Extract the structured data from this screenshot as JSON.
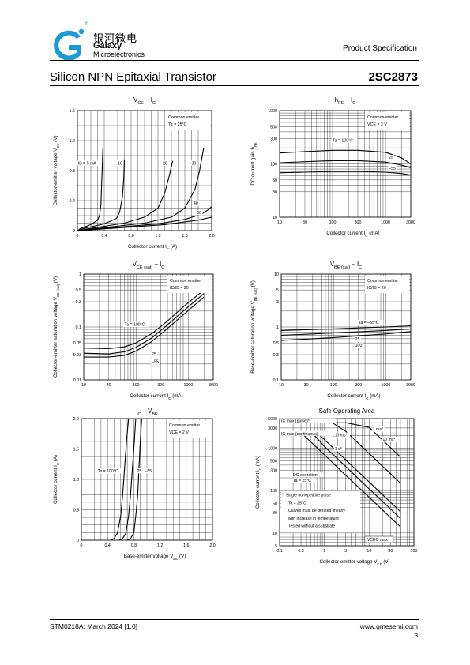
{
  "header": {
    "company_cn": "银河微电",
    "company_name": "Galaxy",
    "company_sub": "Microelectronics",
    "registered_mark": "®",
    "doc_type": "Product Specification",
    "brand_color": "#1a9ad6"
  },
  "title": "Silicon NPN Epitaxial Transistor",
  "part_number": "2SC2873",
  "footer": {
    "doc_id": "STM0218A: March 2024 [1.0]",
    "website": "www.gmesemi.com",
    "page": "3"
  },
  "chart_data": [
    {
      "id": "vce-ic",
      "type": "line",
      "title": [
        "V",
        "CE",
        " – I",
        "C"
      ],
      "xlabel": [
        "Collector current   I",
        "C",
        "   (A)"
      ],
      "ylabel": [
        "Collector-emitter voltage   V",
        "CE",
        "   (V)"
      ],
      "xscale": "linear",
      "yscale": "linear",
      "xlim": [
        0,
        2.0
      ],
      "ylim": [
        0,
        1.6
      ],
      "xticks": [
        0,
        0.4,
        0.8,
        1.2,
        1.6,
        2.0
      ],
      "xtick_labels": [
        "0",
        "0.4",
        "0.8",
        "1.2",
        "1.6",
        "2.0"
      ],
      "yticks": [
        0,
        0.4,
        0.8,
        1.2,
        1.6
      ],
      "ytick_labels": [
        "0",
        "0.4",
        "0.8",
        "1.2",
        "1.6"
      ],
      "grid": true,
      "note": [
        "Common emitter",
        "Ta = 25°C"
      ],
      "series": [
        {
          "name": "IB = 5 mA",
          "x": [
            0,
            0.05,
            0.2,
            0.3,
            0.33,
            0.35,
            0.36,
            0.37,
            0.38
          ],
          "y": [
            0,
            0.03,
            0.08,
            0.14,
            0.2,
            0.35,
            0.6,
            0.85,
            1.1
          ]
        },
        {
          "name": "10",
          "x": [
            0,
            0.1,
            0.4,
            0.58,
            0.63,
            0.67,
            0.69,
            0.7
          ],
          "y": [
            0,
            0.03,
            0.09,
            0.16,
            0.25,
            0.45,
            0.7,
            0.95
          ]
        },
        {
          "name": "20",
          "x": [
            0,
            0.2,
            0.7,
            1.0,
            1.2,
            1.3,
            1.36,
            1.42
          ],
          "y": [
            0,
            0.03,
            0.1,
            0.18,
            0.3,
            0.5,
            0.7,
            0.93
          ]
        },
        {
          "name": "30",
          "x": [
            0,
            0.3,
            1.0,
            1.4,
            1.6,
            1.75,
            1.82,
            1.88
          ],
          "y": [
            0,
            0.03,
            0.1,
            0.18,
            0.3,
            0.55,
            0.8,
            1.1
          ]
        },
        {
          "name": "40",
          "x": [
            0,
            0.4,
            1.2,
            1.6,
            1.85,
            1.95,
            2.0
          ],
          "y": [
            0,
            0.03,
            0.09,
            0.15,
            0.22,
            0.28,
            0.32
          ]
        },
        {
          "name": "50",
          "x": [
            0,
            0.5,
            1.3,
            1.8,
            2.0
          ],
          "y": [
            0,
            0.03,
            0.08,
            0.14,
            0.18
          ]
        }
      ],
      "series_labels": [
        {
          "text": "IB = 5 mA",
          "x": 0.01,
          "y": 0.88
        },
        {
          "text": "10",
          "x": 0.6,
          "y": 0.88
        },
        {
          "text": "20",
          "x": 1.27,
          "y": 0.88
        },
        {
          "text": "30",
          "x": 1.7,
          "y": 0.88
        },
        {
          "text": "40",
          "x": 1.73,
          "y": 0.35
        },
        {
          "text": "50",
          "x": 1.78,
          "y": 0.22
        }
      ]
    },
    {
      "id": "hfe-ic",
      "type": "line",
      "title": [
        "h",
        "FE",
        " – I",
        "C"
      ],
      "xlabel": [
        "Collector current   I",
        "C",
        "   (mA)"
      ],
      "ylabel": [
        "DC current gain   h",
        "FE",
        ""
      ],
      "xscale": "log",
      "yscale": "log",
      "xlim": [
        10,
        3000
      ],
      "ylim": [
        10,
        1000
      ],
      "xticks": [
        10,
        30,
        100,
        300,
        1000,
        3000
      ],
      "xtick_labels": [
        "10",
        "30",
        "100",
        "300",
        "1000",
        "3000"
      ],
      "yticks": [
        10,
        30,
        50,
        100,
        300,
        500,
        1000
      ],
      "ytick_labels": [
        "10",
        "30",
        "50",
        "100",
        "300",
        "500",
        "1000"
      ],
      "grid": true,
      "note": [
        "Common emitter",
        "VCE = 2 V"
      ],
      "series": [
        {
          "name": "Ta = 100°C",
          "x": [
            10,
            30,
            100,
            300,
            1000,
            2000,
            3000
          ],
          "y": [
            160,
            170,
            180,
            180,
            165,
            130,
            100
          ]
        },
        {
          "name": "25",
          "x": [
            10,
            30,
            100,
            300,
            1000,
            2000,
            3000
          ],
          "y": [
            105,
            110,
            115,
            115,
            108,
            95,
            85
          ]
        },
        {
          "name": "–55",
          "x": [
            10,
            30,
            100,
            300,
            1000,
            2000,
            3000
          ],
          "y": [
            68,
            70,
            72,
            72,
            70,
            66,
            62
          ]
        }
      ],
      "series_labels": [
        {
          "text": "Ta = 100°C",
          "x": 100,
          "y": 260
        },
        {
          "text": "25",
          "x": 1150,
          "y": 125
        },
        {
          "text": "–55",
          "x": 1150,
          "y": 78
        }
      ]
    },
    {
      "id": "vcesat-ic",
      "type": "line",
      "title": [
        "V",
        "CE (sat)",
        " – I",
        "C"
      ],
      "xlabel": [
        "Collector current   I",
        "C",
        "   (mA)"
      ],
      "ylabel": [
        "Collector-emitter saturation voltage   V",
        "CE (sat)",
        "   (V)"
      ],
      "xscale": "log",
      "yscale": "log",
      "xlim": [
        10,
        3000
      ],
      "ylim": [
        0.01,
        1
      ],
      "xticks": [
        10,
        30,
        100,
        300,
        1000,
        3000
      ],
      "xtick_labels": [
        "10",
        "30",
        "100",
        "300",
        "1000",
        "3000"
      ],
      "yticks": [
        0.01,
        0.03,
        0.05,
        0.1,
        0.3,
        0.5,
        1
      ],
      "ytick_labels": [
        "0.01",
        "0.03",
        "0.05",
        "0.1",
        "0.3",
        "0.5",
        "1"
      ],
      "grid": true,
      "note": [
        "Common emitter",
        "IC/IB = 20"
      ],
      "series": [
        {
          "name": "Ta = 100°C",
          "x": [
            10,
            30,
            60,
            100,
            200,
            400,
            800,
            1500,
            2000
          ],
          "y": [
            0.04,
            0.039,
            0.042,
            0.05,
            0.075,
            0.13,
            0.24,
            0.4,
            0.5
          ]
        },
        {
          "name": "25",
          "x": [
            10,
            30,
            60,
            100,
            200,
            400,
            800,
            1500,
            2000
          ],
          "y": [
            0.032,
            0.031,
            0.034,
            0.041,
            0.062,
            0.11,
            0.2,
            0.34,
            0.43
          ]
        },
        {
          "name": "–55",
          "x": [
            10,
            30,
            60,
            100,
            200,
            400,
            800,
            1500,
            2000
          ],
          "y": [
            0.027,
            0.027,
            0.029,
            0.035,
            0.053,
            0.094,
            0.17,
            0.29,
            0.37
          ]
        }
      ],
      "series_labels": [
        {
          "text": "Ta = 100°C",
          "x": 60,
          "y": 0.105
        },
        {
          "text": "25",
          "x": 200,
          "y": 0.029
        },
        {
          "text": "–55",
          "x": 200,
          "y": 0.021
        }
      ]
    },
    {
      "id": "vbesat-ic",
      "type": "line",
      "title": [
        "V",
        "BE (sat)",
        " – I",
        "C"
      ],
      "xlabel": [
        "Collector current   I",
        "C",
        "   (mA)"
      ],
      "ylabel": [
        "Base-emitter saturation voltage   V",
        "BE (sat)",
        "   (V)"
      ],
      "xscale": "log",
      "yscale": "log",
      "xlim": [
        10,
        3000
      ],
      "ylim": [
        0.1,
        10
      ],
      "xticks": [
        10,
        30,
        100,
        300,
        1000,
        3000
      ],
      "xtick_labels": [
        "10",
        "30",
        "100",
        "300",
        "1000",
        "3000"
      ],
      "yticks": [
        0.1,
        0.3,
        0.5,
        1,
        3,
        5,
        10
      ],
      "ytick_labels": [
        "0.1",
        "0.3",
        "0.5",
        "1",
        "3",
        "5",
        "10"
      ],
      "grid": true,
      "note": [
        "Common emitter",
        "IC/IB = 20"
      ],
      "series": [
        {
          "name": "Ta = –55°C",
          "x": [
            10,
            30,
            100,
            300,
            1000,
            3000
          ],
          "y": [
            0.86,
            0.89,
            0.92,
            0.96,
            1.0,
            1.05
          ]
        },
        {
          "name": "25",
          "x": [
            10,
            30,
            100,
            300,
            1000,
            3000
          ],
          "y": [
            0.7,
            0.73,
            0.77,
            0.81,
            0.86,
            0.92
          ]
        },
        {
          "name": "100",
          "x": [
            10,
            30,
            100,
            300,
            1000,
            3000
          ],
          "y": [
            0.56,
            0.59,
            0.63,
            0.68,
            0.74,
            0.82
          ]
        }
      ],
      "series_labels": [
        {
          "text": "Ta = –55°C",
          "x": 300,
          "y": 1.15
        },
        {
          "text": "25",
          "x": 260,
          "y": 0.56
        },
        {
          "text": "100",
          "x": 260,
          "y": 0.42
        }
      ]
    },
    {
      "id": "ic-vbe",
      "type": "line",
      "title": [
        "I",
        "C",
        " – V",
        "BE"
      ],
      "xlabel": [
        "Base-emitter voltage   V",
        "BE",
        "   (V)"
      ],
      "ylabel": [
        "Collector current   I",
        "C",
        "   (A)"
      ],
      "xscale": "linear",
      "yscale": "linear",
      "xlim": [
        0,
        2.0
      ],
      "ylim": [
        0,
        2.0
      ],
      "xticks": [
        0,
        0.4,
        0.8,
        1.2,
        1.6,
        2.0
      ],
      "xtick_labels": [
        "0",
        "0.4",
        "0.8",
        "1.2",
        "1.6",
        "2.0"
      ],
      "yticks": [
        0,
        0.5,
        1.0,
        1.5,
        2.0
      ],
      "ytick_labels": [
        "0",
        "0.5",
        "1.0",
        "1.5",
        "2.0"
      ],
      "grid": true,
      "note": [
        "Common emitter",
        "VCE = 2 V"
      ],
      "series": [
        {
          "name": "Ta = 100°C",
          "x": [
            0.45,
            0.5,
            0.55,
            0.6,
            0.63,
            0.66,
            0.69,
            0.72
          ],
          "y": [
            0,
            0.03,
            0.12,
            0.4,
            0.75,
            1.2,
            1.65,
            2.0
          ]
        },
        {
          "name": "25",
          "x": [
            0.58,
            0.63,
            0.68,
            0.72,
            0.75,
            0.78,
            0.81,
            0.83
          ],
          "y": [
            0,
            0.03,
            0.12,
            0.4,
            0.75,
            1.2,
            1.65,
            2.0
          ]
        },
        {
          "name": "–55",
          "x": [
            0.7,
            0.75,
            0.8,
            0.83,
            0.86,
            0.88,
            0.9,
            0.92
          ],
          "y": [
            0,
            0.03,
            0.12,
            0.4,
            0.75,
            1.2,
            1.65,
            2.0
          ]
        }
      ],
      "series_labels": [
        {
          "text": "Ta = 100°C",
          "x": 0.25,
          "y": 1.12
        },
        {
          "text": "25",
          "x": 0.85,
          "y": 1.12
        },
        {
          "text": "–55",
          "x": 0.97,
          "y": 1.12
        }
      ]
    },
    {
      "id": "soa",
      "type": "line",
      "title": [
        "Safe Operating Area",
        "",
        "",
        ""
      ],
      "xlabel": [
        "Collector-emitter voltage   V",
        "CE",
        "   (V)"
      ],
      "ylabel": [
        "Collector current   I",
        "C",
        "   (mA)"
      ],
      "xscale": "log",
      "yscale": "log",
      "xlim": [
        0.1,
        100
      ],
      "ylim": [
        5,
        5000
      ],
      "xticks": [
        0.1,
        0.3,
        1,
        3,
        10,
        30,
        100
      ],
      "xtick_labels": [
        "0.1",
        "0.3",
        "1",
        "3",
        "10",
        "30",
        "100"
      ],
      "yticks": [
        5,
        10,
        30,
        50,
        100,
        300,
        500,
        1000,
        3000,
        5000
      ],
      "ytick_labels": [
        "5",
        "10",
        "30",
        "50",
        "100",
        "300",
        "500",
        "1000",
        "3000",
        "5000"
      ],
      "grid": true,
      "limits": {
        "ic_max_pulse_label": "IC max (pulse)*",
        "ic_max_pulse": 4000,
        "ic_max_continuous_label": "IC max (continuous)",
        "ic_max_continuous": 2000,
        "vceo_max_label": "VCEO max",
        "vceo_max": 50
      },
      "note": [
        "*:  Single no repetitive pulse",
        "Ta = 25°C",
        "Curves must be derated linearly",
        "with increase in temperature",
        "Tested without a substrate"
      ],
      "series": [
        {
          "name": "1 ms*",
          "x": [
            3,
            10,
            30,
            50
          ],
          "y": [
            4000,
            3100,
            1030,
            620
          ]
        },
        {
          "name": "10 ms*",
          "x": [
            1.5,
            3,
            10,
            30,
            50
          ],
          "y": [
            4000,
            2500,
            750,
            250,
            150
          ]
        },
        {
          "name": "100 ms*",
          "x": [
            0.8,
            1,
            3,
            10,
            30,
            50
          ],
          "y": [
            2000,
            1600,
            530,
            160,
            53,
            32
          ]
        },
        {
          "name": "1 s*",
          "x": [
            0.6,
            1,
            3,
            10,
            30,
            50
          ],
          "y": [
            2000,
            1100,
            370,
            110,
            37,
            22
          ]
        },
        {
          "name": "DC operation Ta = 25°C",
          "x": [
            0.35,
            1,
            3,
            10,
            30,
            50
          ],
          "y": [
            2000,
            700,
            230,
            70,
            23,
            14
          ]
        }
      ],
      "series_labels": [
        {
          "text": "1 ms*",
          "x": 12,
          "y": 2600
        },
        {
          "text": "10 ms*",
          "x": 20,
          "y": 1500
        },
        {
          "text": "100 ms*",
          "x": 1.5,
          "y": 1900
        },
        {
          "text": "1 s*",
          "x": 1.7,
          "y": 900
        },
        {
          "text": "DC operation",
          "x": 0.2,
          "y": 220
        },
        {
          "text": "Ta = 25°C",
          "x": 0.2,
          "y": 160
        }
      ]
    }
  ]
}
